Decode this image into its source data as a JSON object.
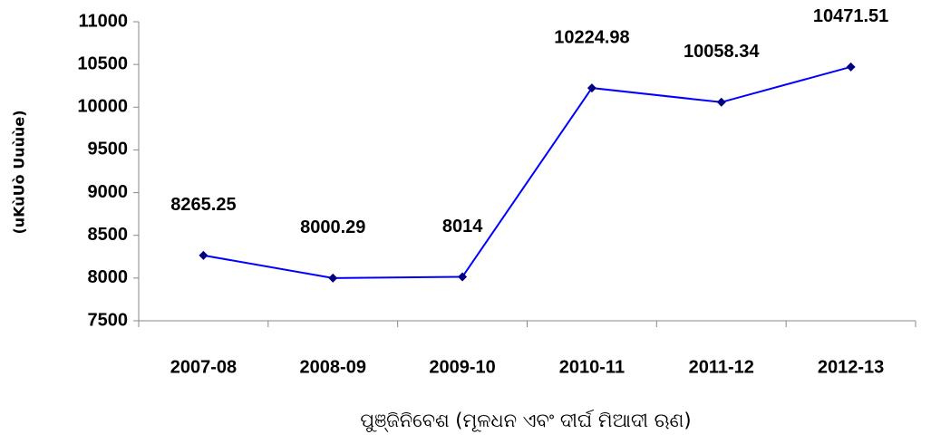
{
  "chart_data": {
    "type": "line",
    "categories": [
      "2007-08",
      "2008-09",
      "2009-10",
      "2010-11",
      "2011-12",
      "2012-13"
    ],
    "series": [
      {
        "name": null,
        "color": "#0000ff",
        "marker_color": "#000080",
        "values": [
          8265.25,
          8000.29,
          8014,
          10224.98,
          10058.34,
          10471.51
        ]
      }
    ],
    "ylim": [
      7500,
      11000
    ],
    "yticks": [
      7500,
      8000,
      8500,
      9000,
      9500,
      10000,
      10500,
      11000
    ],
    "ylabel": "(uKùUò Uuùùe)",
    "xlabel": "ପୁଞ୍ଜିନିବେଶ (ମୂଳଧନ ଏବଂ ଦୀର୍ଘ ମିଆଦୀ ଋଣ)",
    "grid": false
  }
}
